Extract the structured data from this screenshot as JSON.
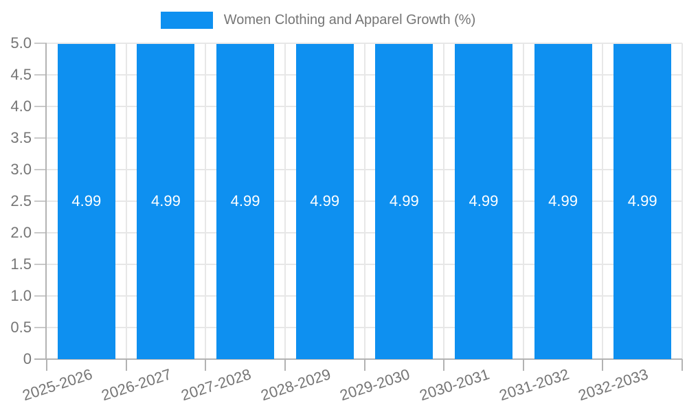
{
  "legend": {
    "label": "Women Clothing and Apparel Growth (%)"
  },
  "chart_data": {
    "type": "bar",
    "title": "",
    "legend_position": "top",
    "categories": [
      "2025-2026",
      "2026-2027",
      "2027-2028",
      "2028-2029",
      "2029-2030",
      "2030-2031",
      "2031-2032",
      "2032-2033"
    ],
    "series": [
      {
        "name": "Women Clothing and Apparel Growth (%)",
        "values": [
          4.99,
          4.99,
          4.99,
          4.99,
          4.99,
          4.99,
          4.99,
          4.99
        ],
        "labels": [
          "4.99",
          "4.99",
          "4.99",
          "4.99",
          "4.99",
          "4.99",
          "4.99",
          "4.99"
        ],
        "color": "#0e90f0"
      }
    ],
    "xlabel": "",
    "ylabel": "",
    "ylim": [
      0,
      5
    ],
    "y_ticks": [
      {
        "value": 0,
        "label": "0"
      },
      {
        "value": 0.5,
        "label": "0.5"
      },
      {
        "value": 1,
        "label": "1.0"
      },
      {
        "value": 1.5,
        "label": "1.5"
      },
      {
        "value": 2,
        "label": "2.0"
      },
      {
        "value": 2.5,
        "label": "2.5"
      },
      {
        "value": 3,
        "label": "3.0"
      },
      {
        "value": 3.5,
        "label": "3.5"
      },
      {
        "value": 4,
        "label": "4.0"
      },
      {
        "value": 4.5,
        "label": "4.5"
      },
      {
        "value": 5,
        "label": "5.0"
      }
    ],
    "grid": true,
    "colors": {
      "bar": "#0e90f0",
      "bar_label": "#ffffff",
      "axis_text": "#757575",
      "grid_line": "#e7e7e7",
      "axis_line": "#b3b3b3",
      "tick_line": "#c9c9c9",
      "background": "#ffffff"
    }
  }
}
